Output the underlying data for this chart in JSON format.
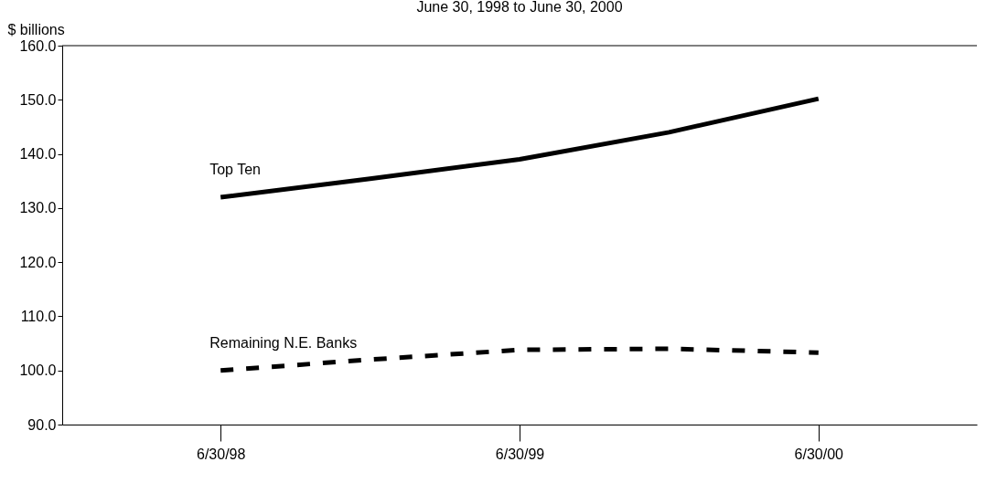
{
  "chart_data": {
    "type": "line",
    "title": "June 30, 1998 to June 30, 2000",
    "ylabel": "$ billions",
    "categories": [
      "6/30/98",
      null,
      "6/30/99",
      null,
      "6/30/00"
    ],
    "series": [
      {
        "name": "Top Ten",
        "color": "#000000",
        "line_style": "solid",
        "values": [
          132.0,
          135.4,
          139.0,
          144.0,
          150.2
        ]
      },
      {
        "name": "Remaining N.E. Banks",
        "color": "#000000",
        "line_style": "dashed",
        "values": [
          100.0,
          102.0,
          103.8,
          104.0,
          103.3
        ]
      }
    ],
    "ylim": [
      90,
      160
    ],
    "yticks": [
      {
        "value": 90,
        "label": "90.0"
      },
      {
        "value": 100,
        "label": "100.0"
      },
      {
        "value": 110,
        "label": "110.0"
      },
      {
        "value": 120,
        "label": "120.0"
      },
      {
        "value": 130,
        "label": "130.0"
      },
      {
        "value": 140,
        "label": "140.0"
      },
      {
        "value": 150,
        "label": "150.0"
      },
      {
        "value": 160,
        "label": "160.0"
      }
    ],
    "grid": false,
    "legend": false,
    "marker": "none"
  }
}
